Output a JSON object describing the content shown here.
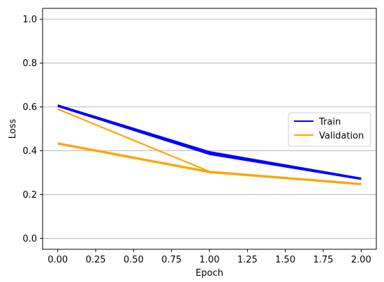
{
  "chart_data": {
    "type": "line",
    "title": "",
    "xlabel": "Epoch",
    "ylabel": "Loss",
    "xlim": [
      -0.1,
      2.1
    ],
    "ylim": [
      -0.05,
      1.05
    ],
    "xticks": [
      0.0,
      0.25,
      0.5,
      0.75,
      1.0,
      1.25,
      1.5,
      1.75,
      2.0
    ],
    "xtick_labels": [
      "0.00",
      "0.25",
      "0.50",
      "0.75",
      "1.00",
      "1.25",
      "1.50",
      "1.75",
      "2.00"
    ],
    "yticks": [
      0.0,
      0.2,
      0.4,
      0.6,
      0.8,
      1.0
    ],
    "ytick_labels": [
      "0.0",
      "0.2",
      "0.4",
      "0.6",
      "0.8",
      "1.0"
    ],
    "grid": "horizontal",
    "legend_position": "center-right",
    "legend": [
      {
        "label": "Train",
        "color": "#0000ff"
      },
      {
        "label": "Validation",
        "color": "#ffa500"
      }
    ],
    "series": [
      {
        "name": "Train",
        "color": "#0000ff",
        "x": [
          0,
          1,
          2
        ],
        "values": [
          0.608,
          0.395,
          0.274
        ]
      },
      {
        "name": "Train",
        "color": "#0000ff",
        "x": [
          0,
          1,
          2
        ],
        "values": [
          0.605,
          0.388,
          0.273
        ]
      },
      {
        "name": "Train",
        "color": "#0000ff",
        "x": [
          0,
          1,
          2
        ],
        "values": [
          0.603,
          0.384,
          0.27
        ]
      },
      {
        "name": "Validation",
        "color": "#ffa500",
        "x": [
          0,
          1,
          2
        ],
        "values": [
          0.435,
          0.305,
          0.249
        ]
      },
      {
        "name": "Validation",
        "color": "#ffa500",
        "x": [
          0,
          1,
          2
        ],
        "values": [
          0.431,
          0.301,
          0.246
        ]
      },
      {
        "name": "Validation",
        "color": "#ffa500",
        "x": [
          0,
          1,
          2
        ],
        "values": [
          0.59,
          0.305,
          0.249
        ]
      }
    ]
  }
}
